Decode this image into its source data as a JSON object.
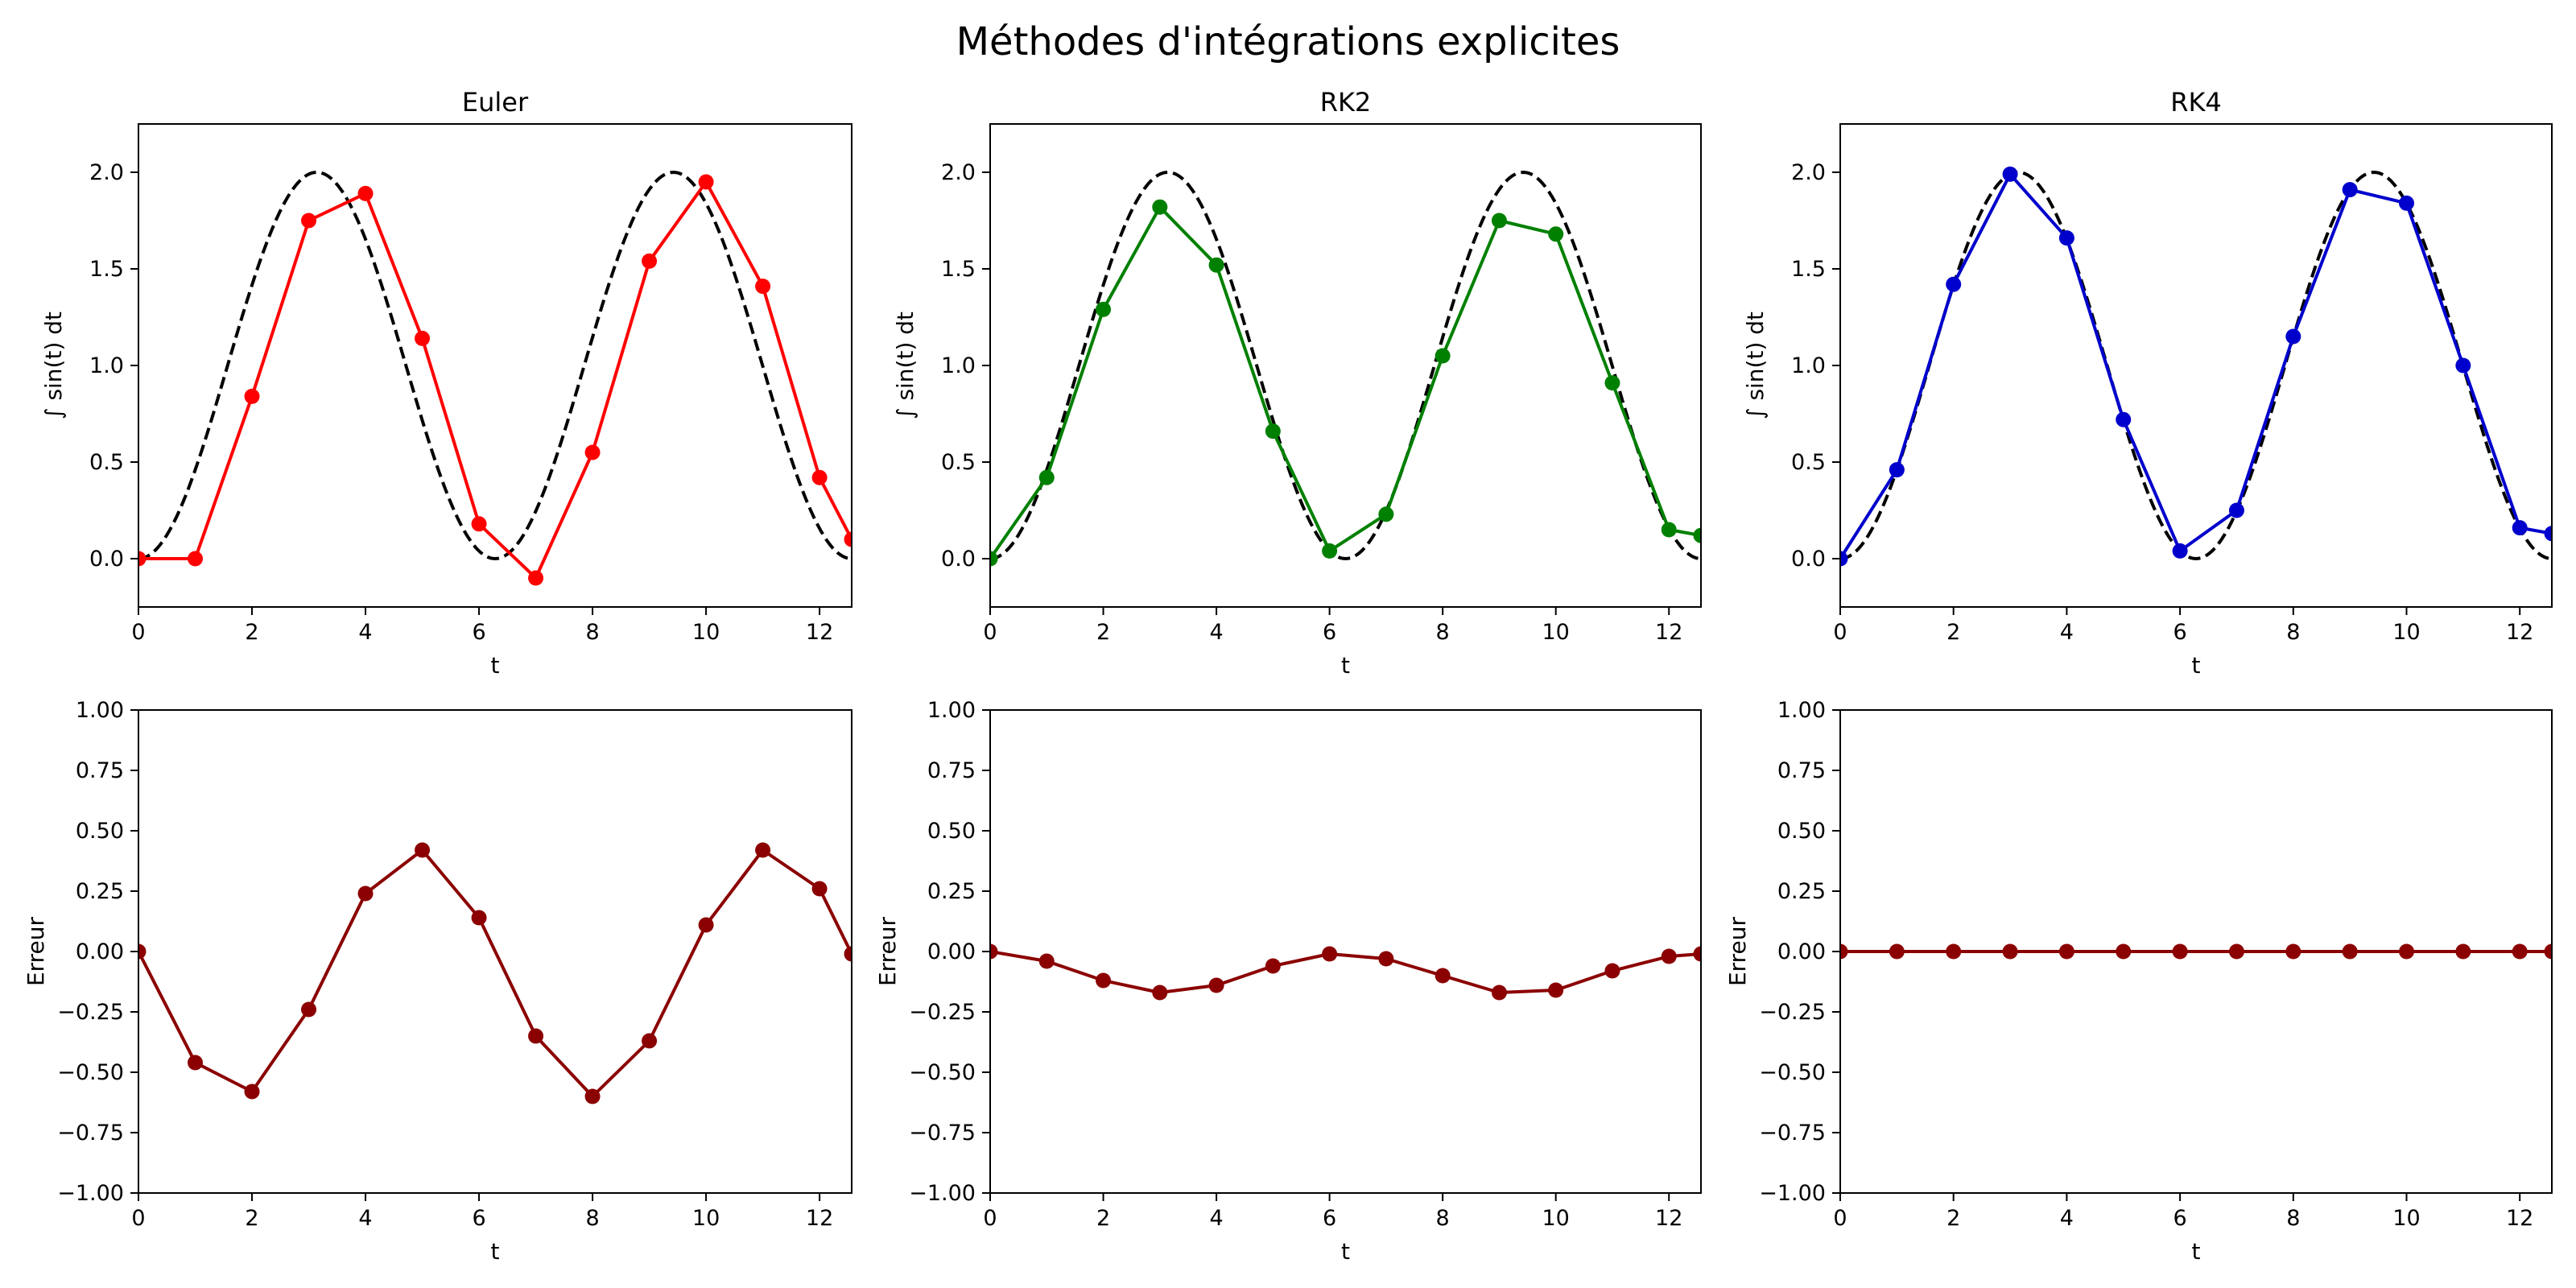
{
  "figure": {
    "title": "Méthodes d'intégrations explicites"
  },
  "chart_data": [
    {
      "type": "line",
      "title": "Euler",
      "xlabel": "t",
      "ylabel": "∫ sin(t) dt",
      "xlim": [
        0,
        12.566
      ],
      "ylim": [
        -0.25,
        2.25
      ],
      "xticks": [
        "0",
        "2",
        "4",
        "6",
        "8",
        "10",
        "12"
      ],
      "yticks": [
        "0.0",
        "0.5",
        "1.0",
        "1.5",
        "2.0"
      ],
      "reference": {
        "function": "1 - cos(t)",
        "color": "#000000",
        "style": "dashed"
      },
      "series": [
        {
          "color": "#ff0000",
          "marker": "circle",
          "x": [
            0,
            1,
            2,
            3,
            4,
            5,
            6,
            7,
            8,
            9,
            10,
            11,
            12,
            12.566
          ],
          "y": [
            0.0,
            0.0,
            0.84,
            1.75,
            1.89,
            1.14,
            0.18,
            -0.1,
            0.55,
            1.54,
            1.95,
            1.41,
            0.42,
            0.1
          ]
        }
      ]
    },
    {
      "type": "line",
      "title": "RK2",
      "xlabel": "t",
      "ylabel": "∫ sin(t) dt",
      "xlim": [
        0,
        12.566
      ],
      "ylim": [
        -0.25,
        2.25
      ],
      "xticks": [
        "0",
        "2",
        "4",
        "6",
        "8",
        "10",
        "12"
      ],
      "yticks": [
        "0.0",
        "0.5",
        "1.0",
        "1.5",
        "2.0"
      ],
      "reference": {
        "function": "1 - cos(t)",
        "color": "#000000",
        "style": "dashed"
      },
      "series": [
        {
          "color": "#008000",
          "marker": "circle",
          "x": [
            0,
            1,
            2,
            3,
            4,
            5,
            6,
            7,
            8,
            9,
            10,
            11,
            12,
            12.566
          ],
          "y": [
            0.0,
            0.42,
            1.29,
            1.82,
            1.52,
            0.66,
            0.04,
            0.23,
            1.05,
            1.75,
            1.68,
            0.91,
            0.15,
            0.12
          ]
        }
      ]
    },
    {
      "type": "line",
      "title": "RK4",
      "xlabel": "t",
      "ylabel": "∫ sin(t) dt",
      "xlim": [
        0,
        12.566
      ],
      "ylim": [
        -0.25,
        2.25
      ],
      "xticks": [
        "0",
        "2",
        "4",
        "6",
        "8",
        "10",
        "12"
      ],
      "yticks": [
        "0.0",
        "0.5",
        "1.0",
        "1.5",
        "2.0"
      ],
      "reference": {
        "function": "1 - cos(t)",
        "color": "#000000",
        "style": "dashed"
      },
      "series": [
        {
          "color": "#0000cc",
          "marker": "circle",
          "x": [
            0,
            1,
            2,
            3,
            4,
            5,
            6,
            7,
            8,
            9,
            10,
            11,
            12,
            12.566
          ],
          "y": [
            0.0,
            0.46,
            1.42,
            1.99,
            1.66,
            0.72,
            0.04,
            0.25,
            1.15,
            1.91,
            1.84,
            1.0,
            0.16,
            0.13
          ]
        }
      ]
    },
    {
      "type": "line",
      "title": "",
      "xlabel": "t",
      "ylabel": "Erreur",
      "xlim": [
        0,
        12.566
      ],
      "ylim": [
        -1.0,
        1.0
      ],
      "xticks": [
        "0",
        "2",
        "4",
        "6",
        "8",
        "10",
        "12"
      ],
      "yticks": [
        "−1.00",
        "−0.75",
        "−0.50",
        "−0.25",
        "0.00",
        "0.25",
        "0.50",
        "0.75",
        "1.00"
      ],
      "series": [
        {
          "color": "#8b0000",
          "marker": "circle",
          "x": [
            0,
            1,
            2,
            3,
            4,
            5,
            6,
            7,
            8,
            9,
            10,
            11,
            12,
            12.566
          ],
          "y": [
            0.0,
            -0.46,
            -0.58,
            -0.24,
            0.24,
            0.42,
            0.14,
            -0.35,
            -0.6,
            -0.37,
            0.11,
            0.42,
            0.26,
            -0.01
          ]
        }
      ]
    },
    {
      "type": "line",
      "title": "",
      "xlabel": "t",
      "ylabel": "Erreur",
      "xlim": [
        0,
        12.566
      ],
      "ylim": [
        -1.0,
        1.0
      ],
      "xticks": [
        "0",
        "2",
        "4",
        "6",
        "8",
        "10",
        "12"
      ],
      "yticks": [
        "−1.00",
        "−0.75",
        "−0.50",
        "−0.25",
        "0.00",
        "0.25",
        "0.50",
        "0.75",
        "1.00"
      ],
      "series": [
        {
          "color": "#8b0000",
          "marker": "circle",
          "x": [
            0,
            1,
            2,
            3,
            4,
            5,
            6,
            7,
            8,
            9,
            10,
            11,
            12,
            12.566
          ],
          "y": [
            0.0,
            -0.04,
            -0.12,
            -0.17,
            -0.14,
            -0.06,
            -0.01,
            -0.03,
            -0.1,
            -0.17,
            -0.16,
            -0.08,
            -0.02,
            -0.01
          ]
        }
      ]
    },
    {
      "type": "line",
      "title": "",
      "xlabel": "t",
      "ylabel": "Erreur",
      "xlim": [
        0,
        12.566
      ],
      "ylim": [
        -1.0,
        1.0
      ],
      "xticks": [
        "0",
        "2",
        "4",
        "6",
        "8",
        "10",
        "12"
      ],
      "yticks": [
        "−1.00",
        "−0.75",
        "−0.50",
        "−0.25",
        "0.00",
        "0.25",
        "0.50",
        "0.75",
        "1.00"
      ],
      "series": [
        {
          "color": "#8b0000",
          "marker": "circle",
          "x": [
            0,
            1,
            2,
            3,
            4,
            5,
            6,
            7,
            8,
            9,
            10,
            11,
            12,
            12.566
          ],
          "y": [
            0,
            0,
            0,
            0,
            0,
            0,
            0,
            0,
            0,
            0,
            0,
            0,
            0,
            0
          ]
        }
      ]
    }
  ]
}
